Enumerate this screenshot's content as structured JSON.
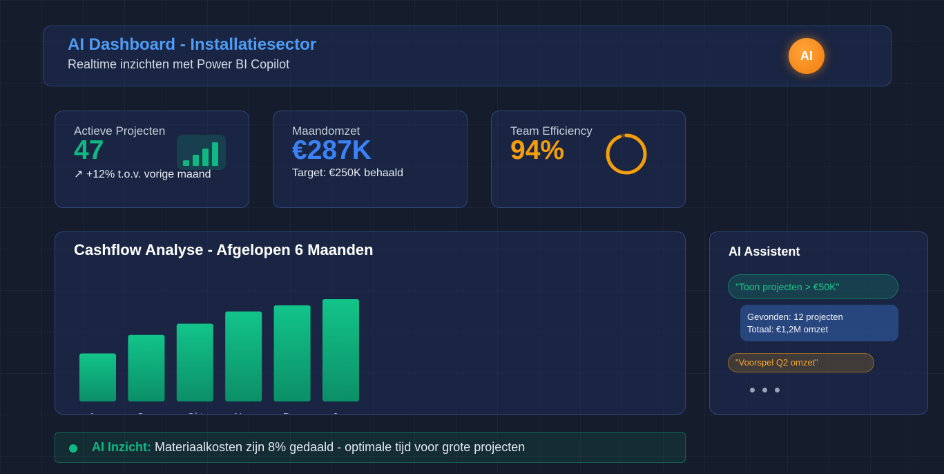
{
  "header": {
    "title": "AI Dashboard - Installatiesector",
    "subtitle": "Realtime inzichten met Power BI Copilot",
    "badge": "AI"
  },
  "kpis": [
    {
      "label": "Actieve Projecten",
      "value": "47",
      "sub": "↗ +12% t.o.v. vorige maand",
      "color": "#10b981",
      "icon": "bar-chart-icon"
    },
    {
      "label": "Maandomzet",
      "value": "€287K",
      "sub": "Target: €250K behaald",
      "color": "#3b82f6"
    },
    {
      "label": "Team Efficiency",
      "value": "94%",
      "color": "#f59e0b",
      "icon": "progress-ring-icon",
      "progress": 0.94
    }
  ],
  "cashflow": {
    "title": "Cashflow Analyse - Afgelopen 6 Maanden"
  },
  "chart_data": {
    "type": "bar",
    "title": "Cashflow Analyse - Afgelopen 6 Maanden",
    "categories": [
      "Aug",
      "Sep",
      "Okt",
      "Nov",
      "Dec",
      "Jan"
    ],
    "values": [
      47,
      65,
      76,
      88,
      94,
      100
    ],
    "ylim": [
      0,
      100
    ],
    "grid": false,
    "xlabel": "",
    "ylabel": "",
    "color": "#10b981"
  },
  "assistant": {
    "title": "AI Assistent",
    "query1": "\"Toon projecten > €50K\"",
    "reply_line1": "Gevonden: 12 projecten",
    "reply_line2": "Totaal: €1,2M omzet",
    "query2": "\"Voorspel Q2 omzet\""
  },
  "insight": {
    "label": "AI Inzicht:",
    "text": " Materiaalkosten zijn 8% gedaald - optimale tijd voor grote projecten"
  },
  "colors": {
    "accent_blue": "#4f9cf5",
    "green": "#10b981",
    "orange": "#f59e0b"
  }
}
